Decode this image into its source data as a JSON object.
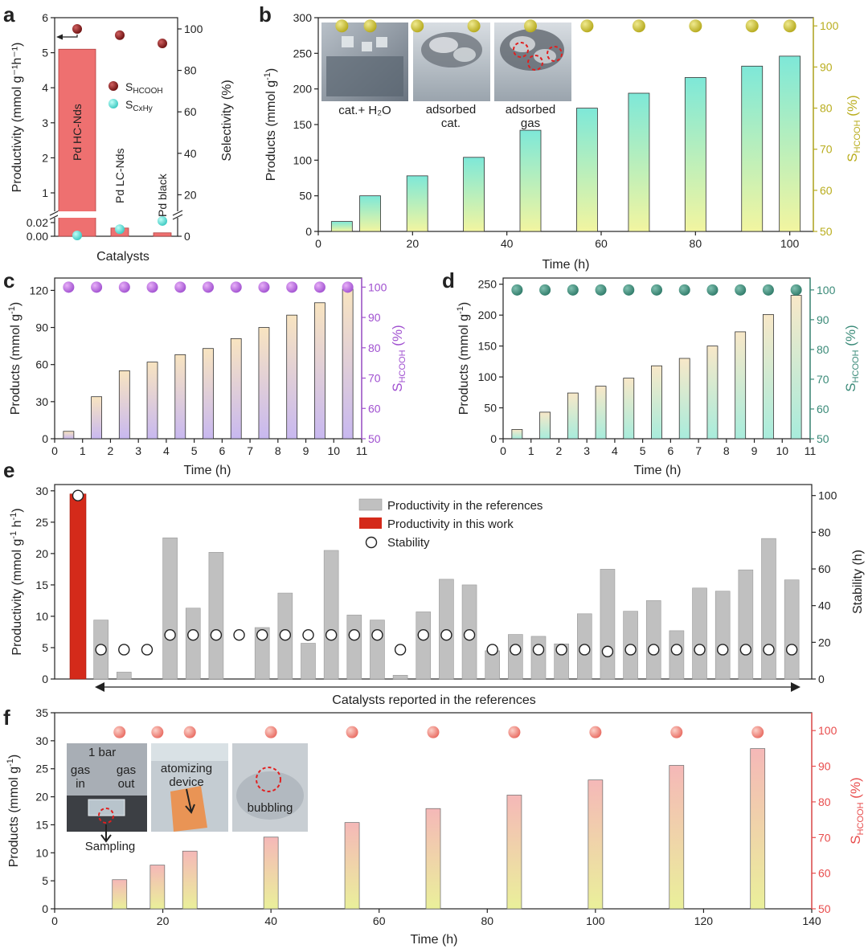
{
  "figure": {
    "panel_letters": [
      "a",
      "b",
      "c",
      "d",
      "e",
      "f"
    ]
  },
  "chart_data": [
    {
      "id": "a",
      "type": "bar",
      "categories": [
        "Pd HC-Nds",
        "Pd LC-Nds",
        "Pd black"
      ],
      "values": [
        5.1,
        0.012,
        0.005
      ],
      "xlabel": "Catalysts",
      "ylabel": "Productivity (mmol g⁻¹h⁻¹)",
      "ylabel2": "Selectivity (%)",
      "yticks_upper": [
        1,
        2,
        3,
        4,
        5,
        6
      ],
      "yticks_lower": [
        "0.00",
        "0.02"
      ],
      "yticks2": [
        0,
        20,
        40,
        60,
        80,
        100
      ],
      "selectivity_hcooh": [
        100,
        97,
        93
      ],
      "selectivity_cxhy": [
        0,
        3,
        7
      ],
      "legend": [
        "S_HCOOH",
        "S_CxHy"
      ],
      "colors": {
        "bar": "#ee7070",
        "hcooh": "#8b1a1a",
        "cxhy": "#55d8d0"
      }
    },
    {
      "id": "b",
      "type": "bar",
      "x": [
        5,
        11,
        21,
        33,
        45,
        57,
        68,
        80,
        92,
        100
      ],
      "values": [
        14,
        50,
        78,
        104,
        142,
        173,
        194,
        216,
        232,
        246
      ],
      "selectivity": [
        100,
        100,
        100,
        100,
        100,
        100,
        100,
        100,
        100,
        100
      ],
      "xlabel": "Time (h)",
      "ylabel": "Products (mmol g⁻¹)",
      "ylabel2": "S_HCOOH (%)",
      "xlim": [
        0,
        105
      ],
      "ylim": [
        0,
        300
      ],
      "y2lim": [
        50,
        102
      ],
      "xticks": [
        0,
        20,
        40,
        60,
        80,
        100
      ],
      "yticks": [
        0,
        50,
        100,
        150,
        200,
        250,
        300
      ],
      "y2ticks": [
        50,
        60,
        70,
        80,
        90,
        100
      ],
      "photo_labels": [
        "cat.+ H₂O",
        "adsorbed cat.",
        "adsorbed gas"
      ],
      "colors": {
        "top": "#7ee8d8",
        "bottom": "#f2f5a0",
        "dot": "#c4b81e",
        "axis2": "#b9ad1e"
      }
    },
    {
      "id": "c",
      "type": "bar",
      "x": [
        0.5,
        1.5,
        2.5,
        3.5,
        4.5,
        5.5,
        6.5,
        7.5,
        8.5,
        9.5,
        10.5
      ],
      "values": [
        6,
        34,
        55,
        62,
        68,
        73,
        81,
        90,
        100,
        110,
        121
      ],
      "selectivity": [
        100,
        100,
        100,
        100,
        100,
        100,
        100,
        100,
        100,
        100,
        100
      ],
      "xlabel": "Time (h)",
      "ylabel": "Products (mmol g⁻¹)",
      "ylabel2": "S_HCOOH (%)",
      "xlim": [
        0,
        11
      ],
      "ylim": [
        0,
        130
      ],
      "y2lim": [
        50,
        103
      ],
      "xticks": [
        0,
        1,
        2,
        3,
        4,
        5,
        6,
        7,
        8,
        9,
        10,
        11
      ],
      "yticks": [
        0,
        30,
        60,
        90,
        120
      ],
      "y2ticks": [
        50,
        60,
        70,
        80,
        90,
        100
      ],
      "colors": {
        "top": "#f8e4c0",
        "bottom": "#c8b8f0",
        "dot": "#b460e0",
        "axis2": "#a050d0"
      }
    },
    {
      "id": "d",
      "type": "bar",
      "x": [
        0.5,
        1.5,
        2.5,
        3.5,
        4.5,
        5.5,
        6.5,
        7.5,
        8.5,
        9.5,
        10.5
      ],
      "values": [
        15,
        43,
        74,
        85,
        98,
        118,
        130,
        150,
        173,
        201,
        232
      ],
      "selectivity": [
        100,
        100,
        100,
        100,
        100,
        100,
        100,
        100,
        100,
        100,
        100
      ],
      "xlabel": "Time (h)",
      "ylabel": "Products (mmol g⁻¹)",
      "ylabel2": "S_HCOOH (%)",
      "xlim": [
        0,
        11
      ],
      "ylim": [
        0,
        260
      ],
      "y2lim": [
        50,
        104
      ],
      "xticks": [
        0,
        1,
        2,
        3,
        4,
        5,
        6,
        7,
        8,
        9,
        10,
        11
      ],
      "yticks": [
        0,
        50,
        100,
        150,
        200,
        250
      ],
      "y2ticks": [
        50,
        60,
        70,
        80,
        90,
        100
      ],
      "colors": {
        "top": "#f8e8c8",
        "bottom": "#a8ecdc",
        "dot": "#3a8a78",
        "axis2": "#3a8a78"
      }
    },
    {
      "id": "e",
      "type": "bar",
      "values": [
        29.5,
        9.4,
        1.1,
        0,
        22.5,
        11.3,
        20.2,
        0,
        8.2,
        13.7,
        5.7,
        20.5,
        10.2,
        9.4,
        0.6,
        10.7,
        15.9,
        15.0,
        4.5,
        7.1,
        6.8,
        5.6,
        10.4,
        17.5,
        10.8,
        12.5,
        7.7,
        14.5,
        14.0,
        17.4,
        22.4,
        15.8
      ],
      "stability": [
        100,
        16,
        16,
        16,
        24,
        24,
        24,
        24,
        24,
        24,
        24,
        24,
        24,
        24,
        16,
        24,
        24,
        24,
        16,
        16,
        16,
        16,
        16,
        15,
        16,
        16,
        16,
        16,
        16,
        16,
        16,
        16
      ],
      "xlabel": "Catalysts reported in the references",
      "ylabel": "Productivity (mmol g⁻¹ h⁻¹)",
      "ylabel2": "Stability (h)",
      "ylim": [
        0,
        31
      ],
      "y2lim": [
        0,
        106
      ],
      "yticks": [
        0,
        5,
        10,
        15,
        20,
        25,
        30
      ],
      "y2ticks": [
        0,
        20,
        40,
        60,
        80,
        100
      ],
      "legend": [
        "Productivity in the references",
        "Productivity in this work",
        "Stability"
      ],
      "colors": {
        "ref": "#c0c0c0",
        "work": "#d42a1a"
      }
    },
    {
      "id": "f",
      "type": "bar",
      "x": [
        12,
        19,
        25,
        40,
        55,
        70,
        85,
        100,
        115,
        130
      ],
      "values": [
        5.2,
        7.8,
        10.3,
        12.8,
        15.4,
        17.9,
        20.3,
        23.0,
        25.6,
        28.6
      ],
      "selectivity": [
        100,
        100,
        100,
        100,
        100,
        100,
        100,
        100,
        100,
        100
      ],
      "xlabel": "Time (h)",
      "ylabel": "Products (mmol g⁻¹)",
      "ylabel2": "S_HCOOH (%)",
      "xlim": [
        0,
        140
      ],
      "ylim": [
        0,
        35
      ],
      "y2lim": [
        50,
        105
      ],
      "xticks": [
        0,
        20,
        40,
        60,
        80,
        100,
        120,
        140
      ],
      "yticks": [
        0,
        5,
        10,
        15,
        20,
        25,
        30,
        35
      ],
      "y2ticks": [
        50,
        60,
        70,
        80,
        90,
        100
      ],
      "photo_labels": [
        "1 bar",
        "gas in",
        "gas out",
        "Sampling",
        "atomizing device",
        "bubbling"
      ],
      "colors": {
        "top": "#f5b8b8",
        "bottom": "#eaf09a",
        "dot": "#f08a80",
        "axis2": "#e84c4c"
      }
    }
  ]
}
